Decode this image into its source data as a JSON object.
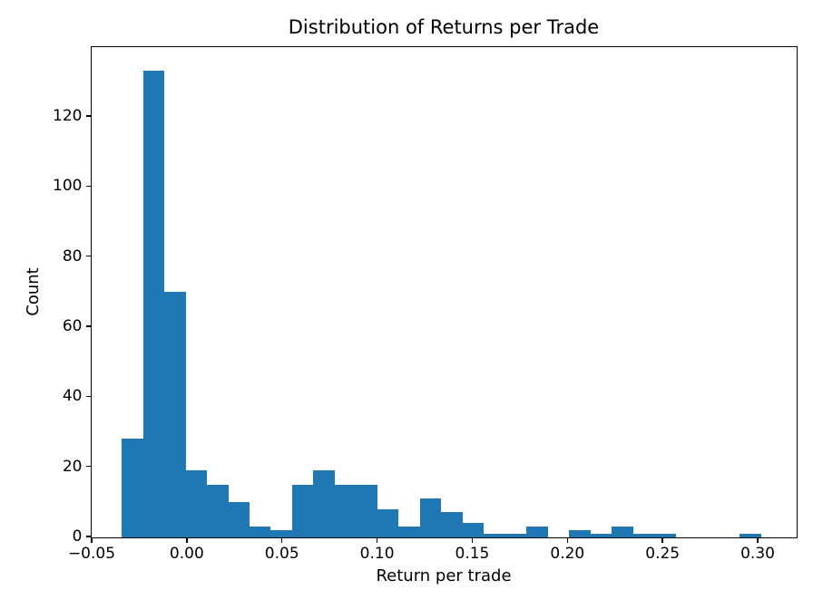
{
  "figure": {
    "title": "Distribution of Returns per Trade",
    "xlabel": "Return per trade",
    "ylabel": "Count"
  },
  "chart_data": {
    "type": "bar",
    "subtype": "histogram",
    "title": "Distribution of Returns per Trade",
    "xlabel": "Return per trade",
    "ylabel": "Count",
    "bar_color": "#1f77b4",
    "n_bins": 30,
    "bin_start": -0.034,
    "bin_width": 0.0112,
    "counts": [
      28,
      133,
      70,
      19,
      15,
      10,
      3,
      2,
      15,
      19,
      15,
      15,
      8,
      3,
      11,
      7,
      4,
      1,
      1,
      3,
      0,
      2,
      1,
      3,
      1,
      1,
      0,
      0,
      0,
      1
    ],
    "total_count": 391,
    "xlim": [
      -0.05,
      0.32
    ],
    "ylim": [
      0,
      139.65
    ],
    "xticks": [
      -0.05,
      0.0,
      0.05,
      0.1,
      0.15,
      0.2,
      0.25,
      0.3
    ],
    "xtick_labels": [
      "−0.05",
      "0.00",
      "0.05",
      "0.10",
      "0.15",
      "0.20",
      "0.25",
      "0.30"
    ],
    "yticks": [
      0,
      20,
      40,
      60,
      80,
      100,
      120
    ],
    "ytick_labels": [
      "0",
      "20",
      "40",
      "60",
      "80",
      "100",
      "120"
    ],
    "grid": false,
    "legend": "none"
  }
}
